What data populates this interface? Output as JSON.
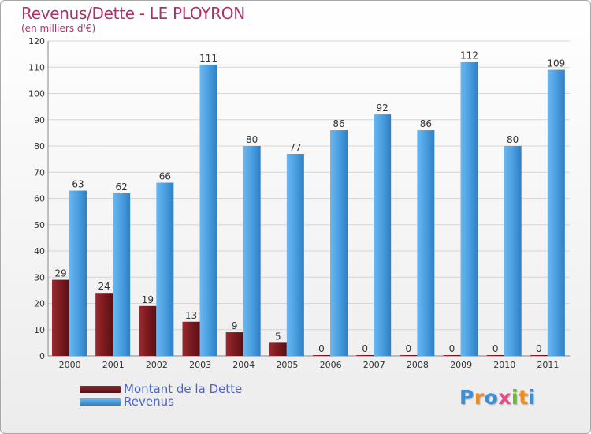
{
  "header": {
    "title": "Revenus/Dette - LE PLOYRON",
    "subtitle": "(en milliers d'€)"
  },
  "legend": {
    "debt_label": "Montant de la Dette",
    "revenue_label": "Revenus"
  },
  "logo": {
    "letters": [
      "P",
      "r",
      "o",
      "x",
      "i",
      "t",
      "i"
    ]
  },
  "colors": {
    "debt": "#7a1a1f",
    "revenue": "#4a9fe0",
    "title": "#b0306a",
    "logo": [
      "#3a8fd8",
      "#f08a1a",
      "#3a8fd8",
      "#e84a8a",
      "#6ab82a",
      "#f08a1a",
      "#3a8fd8"
    ]
  },
  "chart_data": {
    "type": "bar",
    "title": "Revenus/Dette - LE PLOYRON",
    "subtitle": "(en milliers d'€)",
    "categories": [
      "2000",
      "2001",
      "2002",
      "2003",
      "2004",
      "2005",
      "2006",
      "2007",
      "2008",
      "2009",
      "2010",
      "2011"
    ],
    "series": [
      {
        "name": "Montant de la Dette",
        "values": [
          29,
          24,
          19,
          13,
          9,
          5,
          0,
          0,
          0,
          0,
          0,
          0
        ]
      },
      {
        "name": "Revenus",
        "values": [
          63,
          62,
          66,
          111,
          80,
          77,
          86,
          92,
          86,
          112,
          80,
          109
        ]
      }
    ],
    "ylim": [
      0,
      120
    ],
    "yticks": [
      0,
      10,
      20,
      30,
      40,
      50,
      60,
      70,
      80,
      90,
      100,
      110,
      120
    ],
    "grid": true,
    "legend_position": "bottom-left"
  }
}
